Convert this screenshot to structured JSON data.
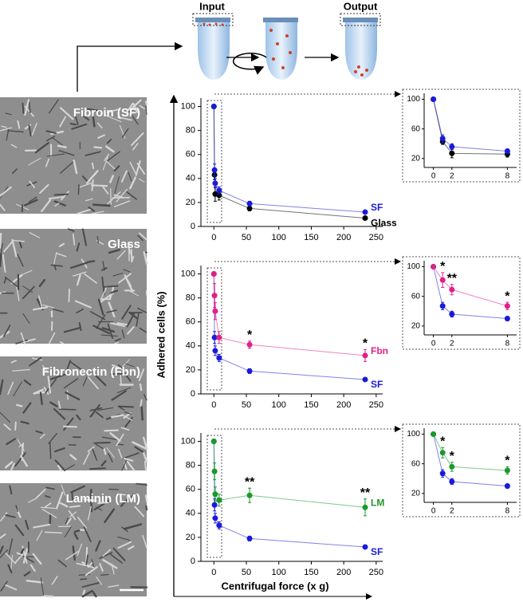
{
  "diagram": {
    "input": "Input",
    "output": "Output"
  },
  "images": [
    {
      "label": "Fibroin (SF)"
    },
    {
      "label": "Glass"
    },
    {
      "label": "Fibronectin (Fbn)"
    },
    {
      "label": "Laminin (LM)"
    }
  ],
  "axis_labels": {
    "y": "Adhered cells (%)",
    "x": "Centrifugal force (x g)"
  },
  "chart_data": [
    {
      "type": "line",
      "x": [
        0,
        1,
        2,
        8,
        55,
        233
      ],
      "xlim": [
        -20,
        260
      ],
      "ylim": [
        0,
        107
      ],
      "xticks": [
        0,
        50,
        100,
        150,
        200,
        250
      ],
      "yticks": [
        0,
        20,
        40,
        60,
        80,
        100
      ],
      "inset": {
        "xlim": [
          -1,
          9
        ],
        "ylim": [
          8,
          108
        ],
        "xticks": [
          0,
          2,
          8
        ],
        "yticks": [
          20,
          60,
          100
        ]
      },
      "series": [
        {
          "name": "SF",
          "color": "#1a1adb",
          "values": [
            100,
            47,
            36,
            30,
            19,
            12
          ],
          "errors": [
            0,
            5,
            4,
            3,
            2,
            1
          ],
          "significance": [
            null,
            null,
            null,
            null,
            null,
            null
          ]
        },
        {
          "name": "Glass",
          "color": "#000000",
          "values": [
            100,
            43,
            27,
            26,
            15,
            7
          ],
          "errors": [
            0,
            4,
            6,
            4,
            2,
            1
          ],
          "significance": [
            null,
            null,
            null,
            null,
            null,
            null
          ]
        }
      ]
    },
    {
      "type": "line",
      "x": [
        0,
        1,
        2,
        8,
        55,
        233
      ],
      "xlim": [
        -20,
        260
      ],
      "ylim": [
        0,
        107
      ],
      "xticks": [
        0,
        50,
        100,
        150,
        200,
        250
      ],
      "yticks": [
        0,
        20,
        40,
        60,
        80,
        100
      ],
      "inset": {
        "xlim": [
          -1,
          9
        ],
        "ylim": [
          8,
          108
        ],
        "xticks": [
          0,
          2,
          8
        ],
        "yticks": [
          20,
          60,
          100
        ]
      },
      "series": [
        {
          "name": "Fbn",
          "color": "#e0208a",
          "values": [
            100,
            82,
            69,
            47,
            41,
            32
          ],
          "errors": [
            0,
            10,
            7,
            5,
            3,
            5
          ],
          "significance": [
            null,
            "*",
            "**",
            "*",
            "*",
            "*"
          ]
        },
        {
          "name": "SF",
          "color": "#1a1adb",
          "values": [
            100,
            47,
            36,
            30,
            19,
            12
          ],
          "errors": [
            0,
            5,
            4,
            3,
            2,
            1
          ],
          "significance": [
            null,
            null,
            null,
            null,
            null,
            null
          ]
        }
      ]
    },
    {
      "type": "line",
      "x": [
        0,
        1,
        2,
        8,
        55,
        233
      ],
      "xlim": [
        -20,
        260
      ],
      "ylim": [
        0,
        107
      ],
      "xticks": [
        0,
        50,
        100,
        150,
        200,
        250
      ],
      "yticks": [
        0,
        20,
        40,
        60,
        80,
        100
      ],
      "inset": {
        "xlim": [
          -1,
          9
        ],
        "ylim": [
          8,
          108
        ],
        "xticks": [
          0,
          2,
          8
        ],
        "yticks": [
          20,
          60,
          100
        ]
      },
      "series": [
        {
          "name": "LM",
          "color": "#1a9a2a",
          "values": [
            100,
            75,
            56,
            51,
            55,
            45
          ],
          "errors": [
            0,
            7,
            6,
            5,
            6,
            7
          ],
          "significance": [
            null,
            "*",
            "*",
            "*",
            "**",
            "**"
          ]
        },
        {
          "name": "SF",
          "color": "#1a1adb",
          "values": [
            100,
            47,
            36,
            30,
            19,
            12
          ],
          "errors": [
            0,
            5,
            4,
            3,
            2,
            1
          ],
          "significance": [
            null,
            null,
            null,
            null,
            null,
            null
          ]
        }
      ]
    }
  ]
}
